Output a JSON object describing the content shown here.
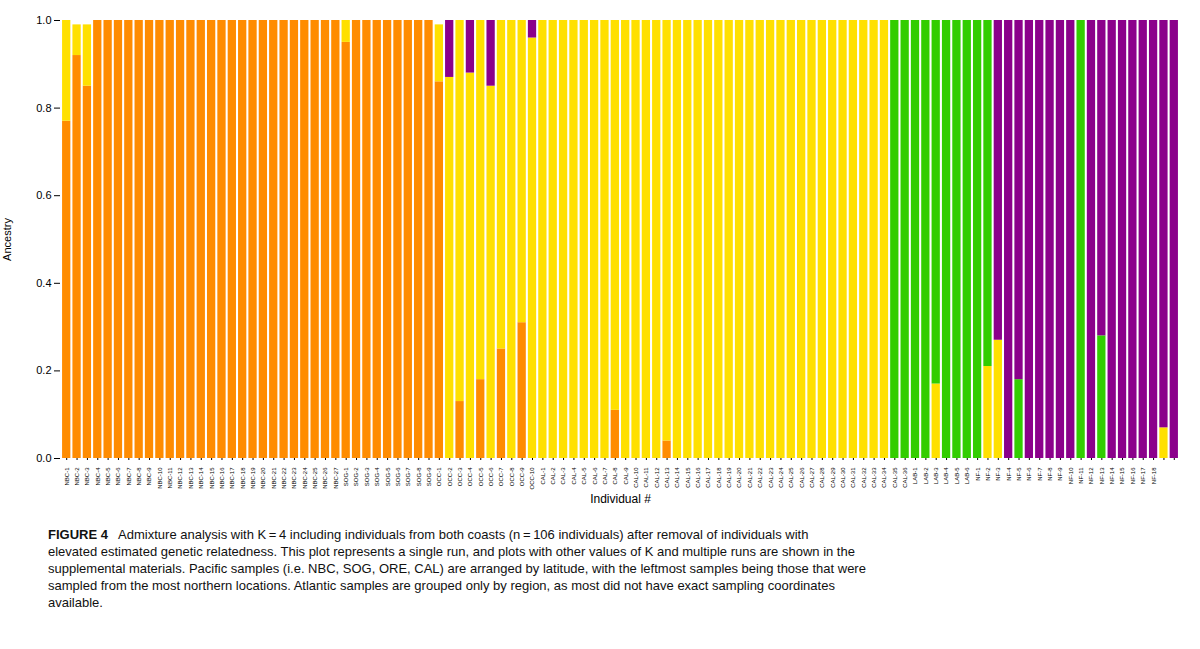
{
  "chart_data": {
    "type": "bar",
    "stacked": true,
    "xlabel": "Individual #",
    "ylabel": "Ancestry",
    "caption": [
      "FIGURE 4",
      "   Admixture analysis with K = 4 including individuals from both coasts (n = 106 individuals) after removal of individuals with\nelevated estimated genetic relatedness. This plot represents a single run, and plots with other values of K and multiple runs are shown in the\nsupplemental materials. Pacific samples (i.e. NBC, SOG, ORE, CAL) are arranged by latitude, with the leftmost samples being those that were\nsampled from the most northern locations. Atlantic samples are grouped only by region, as most did not have exact sampling coordinates\navailable."
    ],
    "ylim": [
      0.0,
      1.0
    ],
    "yticks": [
      {
        "value": 0.0,
        "label": "0.0"
      },
      0.2,
      0.4,
      0.6,
      0.8,
      {
        "value": 1.0,
        "label": "1.0"
      }
    ],
    "categories": [
      "NBC-1",
      "NBC-2",
      "NBC-3",
      "NBC-4",
      "NBC-5",
      "NBC-6",
      "NBC-7",
      "NBC-8",
      "NBC-9",
      "NBC-10",
      "NBC-11",
      "NBC-12",
      "NBC-13",
      "NBC-14",
      "NBC-15",
      "NBC-16",
      "NBC-17",
      "NBC-18",
      "NBC-19",
      "NBC-20",
      "NBC-21",
      "NBC-22",
      "NBC-23",
      "NBC-24",
      "NBC-25",
      "NBC-26",
      "NBC-27",
      "SOG-1",
      "SOG-2",
      "SOG-3",
      "SOG-4",
      "SOG-5",
      "SOG-6",
      "SOG-7",
      "SOG-8",
      "SOG-9",
      "OCC-1",
      "OCC-2",
      "OCC-3",
      "OCC-4",
      "OCC-5",
      "OCC-6",
      "OCC-7",
      "OCC-8",
      "OCC-9",
      "OCC-10",
      "CAL-1",
      "CAL-2",
      "CAL-3",
      "CAL-4",
      "CAL-5",
      "CAL-6",
      "CAL-7",
      "CAL-8",
      "CAL-9",
      "CAL-10",
      "CAL-11",
      "CAL-12",
      "CAL-13",
      "CAL-14",
      "CAL-15",
      "CAL-16",
      "CAL-17",
      "CAL-18",
      "CAL-19",
      "CAL-20",
      "CAL-21",
      "CAL-22",
      "CAL-23",
      "CAL-24",
      "CAL-25",
      "CAL-26",
      "CAL-27",
      "CAL-28",
      "CAL-29",
      "CAL-30",
      "CAL-31",
      "CAL-32",
      "CAL-33",
      "CAL-34",
      "CAL-35",
      "CAL-36",
      "LAB-1",
      "LAB-2",
      "LAB-3",
      "LAB-4",
      "LAB-5",
      "LAB-6",
      "NF-1",
      "NF-2",
      "NF-3",
      "NF-4",
      "NF-5",
      "NF-6",
      "NF-7",
      "NF-8",
      "NF-9",
      "NF-10",
      "NF-11",
      "NF-12",
      "NF-13",
      "NF-14",
      "NF-15",
      "NF-16",
      "NF-17",
      "NF-18",
      null,
      null
    ],
    "series": [
      {
        "color": "#FF8C00",
        "values": [
          0.77,
          0.92,
          0.85,
          1,
          1,
          1,
          1,
          1,
          1,
          1,
          1,
          1,
          1,
          1,
          1,
          1,
          1,
          1,
          1,
          1,
          1,
          1,
          1,
          1,
          1,
          1,
          1,
          0.95,
          1,
          1,
          1,
          1,
          1,
          1,
          1,
          1,
          0.86,
          0,
          0.13,
          0,
          0.18,
          0,
          0.25,
          0,
          0.31,
          0,
          0,
          0,
          0,
          0,
          0,
          0,
          0,
          0.11,
          0,
          0,
          0,
          0,
          0.04,
          0,
          0,
          0,
          0,
          0,
          0,
          0,
          0,
          0,
          0,
          0,
          0,
          0,
          0,
          0,
          0,
          0,
          0,
          0,
          0,
          0,
          0,
          0,
          0,
          0,
          0,
          0,
          0,
          0,
          0,
          0,
          0,
          0,
          0,
          0,
          0,
          0,
          0,
          0,
          0,
          0,
          0,
          0,
          0,
          0,
          0,
          0,
          0,
          0
        ]
      },
      {
        "color": "#FFE000",
        "values": [
          0.23,
          0.07,
          0.14,
          0,
          0,
          0,
          0,
          0,
          0,
          0,
          0,
          0,
          0,
          0,
          0,
          0,
          0,
          0,
          0,
          0,
          0,
          0,
          0,
          0,
          0,
          0,
          0,
          0.05,
          0,
          0,
          0,
          0,
          0,
          0,
          0,
          0,
          0.13,
          0.87,
          0.87,
          0.88,
          0.82,
          0.85,
          0.75,
          1,
          0.69,
          0.96,
          1,
          1,
          1,
          1,
          1,
          1,
          1,
          0.89,
          1,
          1,
          1,
          1,
          0.96,
          1,
          1,
          1,
          1,
          1,
          1,
          1,
          1,
          1,
          1,
          1,
          1,
          1,
          1,
          1,
          1,
          1,
          1,
          1,
          1,
          1,
          0,
          0,
          0,
          0,
          0.17,
          0,
          0,
          0,
          0,
          0.21,
          0.27,
          0,
          0,
          0,
          0,
          0,
          0,
          0,
          0,
          0,
          0,
          0,
          0,
          0,
          0,
          0,
          0.07,
          0
        ]
      },
      {
        "color": "#32CD00",
        "values": [
          0,
          0,
          0,
          0,
          0,
          0,
          0,
          0,
          0,
          0,
          0,
          0,
          0,
          0,
          0,
          0,
          0,
          0,
          0,
          0,
          0,
          0,
          0,
          0,
          0,
          0,
          0,
          0,
          0,
          0,
          0,
          0,
          0,
          0,
          0,
          0,
          0,
          0,
          0,
          0,
          0,
          0,
          0,
          0,
          0,
          0,
          0,
          0,
          0,
          0,
          0,
          0,
          0,
          0,
          0,
          0,
          0,
          0,
          0,
          0,
          0,
          0,
          0,
          0,
          0,
          0,
          0,
          0,
          0,
          0,
          0,
          0,
          0,
          0,
          0,
          0,
          0,
          0,
          0,
          0,
          1,
          1,
          1,
          1,
          0.83,
          1,
          1,
          1,
          1,
          0.79,
          0,
          0,
          0.18,
          0,
          0,
          0,
          0,
          0,
          1,
          0,
          0.28,
          0,
          0,
          0,
          0,
          0,
          0,
          0
        ]
      },
      {
        "color": "#8B008B",
        "values": [
          0,
          0,
          0,
          0,
          0,
          0,
          0,
          0,
          0,
          0,
          0,
          0,
          0,
          0,
          0,
          0,
          0,
          0,
          0,
          0,
          0,
          0,
          0,
          0,
          0,
          0,
          0,
          0,
          0,
          0,
          0,
          0,
          0,
          0,
          0,
          0,
          0,
          0.13,
          0,
          0.12,
          0,
          0.15,
          0,
          0,
          0,
          0.04,
          0,
          0,
          0,
          0,
          0,
          0,
          0,
          0,
          0,
          0,
          0,
          0,
          0,
          0,
          0,
          0,
          0,
          0,
          0,
          0,
          0,
          0,
          0,
          0,
          0,
          0,
          0,
          0,
          0,
          0,
          0,
          0,
          0,
          0,
          0,
          0,
          0,
          0,
          0,
          0,
          0,
          0,
          0,
          0,
          0.73,
          1,
          0.82,
          1,
          1,
          1,
          1,
          1,
          0,
          1,
          0.72,
          1,
          1,
          1,
          1,
          1,
          0.93,
          1
        ]
      }
    ]
  }
}
